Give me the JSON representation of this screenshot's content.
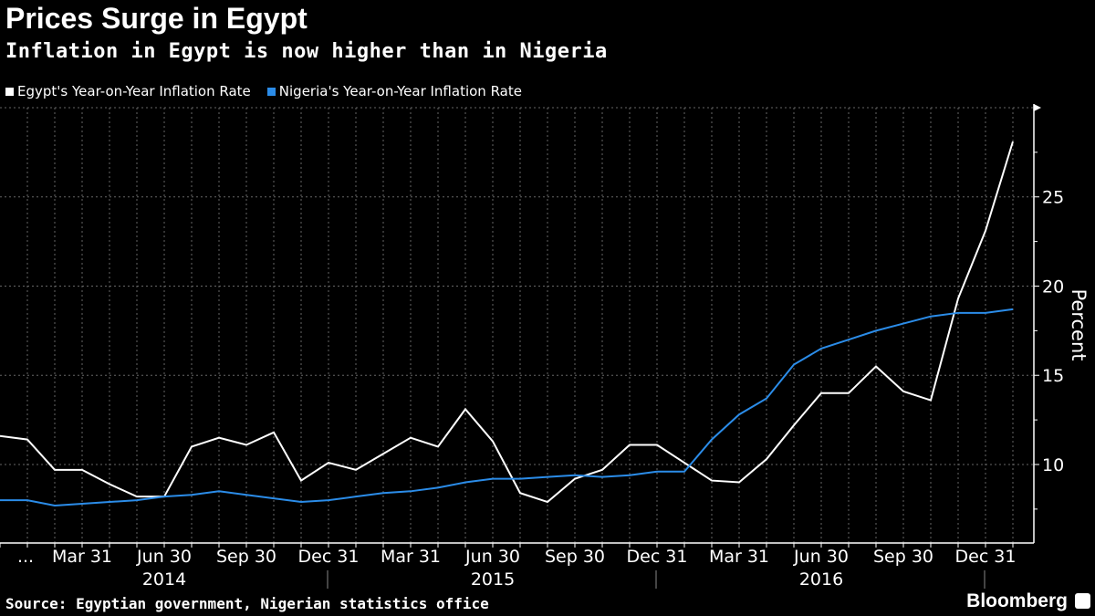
{
  "chart_data": {
    "type": "line",
    "title": "Prices Surge in Egypt",
    "subtitle": "Inflation in Egypt is now higher than in Nigeria",
    "ylabel": "Percent",
    "ylim": [
      5.6,
      30
    ],
    "yticks": [
      10,
      15,
      20,
      25
    ],
    "x": [
      "2013-12",
      "2014-01",
      "2014-02",
      "2014-03",
      "2014-04",
      "2014-05",
      "2014-06",
      "2014-07",
      "2014-08",
      "2014-09",
      "2014-10",
      "2014-11",
      "2014-12",
      "2015-01",
      "2015-02",
      "2015-03",
      "2015-04",
      "2015-05",
      "2015-06",
      "2015-07",
      "2015-08",
      "2015-09",
      "2015-10",
      "2015-11",
      "2015-12",
      "2016-01",
      "2016-02",
      "2016-03",
      "2016-04",
      "2016-05",
      "2016-06",
      "2016-07",
      "2016-08",
      "2016-09",
      "2016-10",
      "2016-11",
      "2016-12",
      "2017-01"
    ],
    "xtick_labels": [
      {
        "i": 1,
        "label": "..."
      },
      {
        "i": 3,
        "label": "Mar 31"
      },
      {
        "i": 6,
        "label": "Jun 30"
      },
      {
        "i": 9,
        "label": "Sep 30"
      },
      {
        "i": 12,
        "label": "Dec 31"
      },
      {
        "i": 15,
        "label": "Mar 31"
      },
      {
        "i": 18,
        "label": "Jun 30"
      },
      {
        "i": 21,
        "label": "Sep 30"
      },
      {
        "i": 24,
        "label": "Dec 31"
      },
      {
        "i": 27,
        "label": "Mar 31"
      },
      {
        "i": 30,
        "label": "Jun 30"
      },
      {
        "i": 33,
        "label": "Sep 30"
      },
      {
        "i": 36,
        "label": "Dec 31"
      }
    ],
    "year_labels": [
      {
        "i": 6,
        "label": "2014"
      },
      {
        "i": 18,
        "label": "2015"
      },
      {
        "i": 30,
        "label": "2016"
      }
    ],
    "grid": true,
    "legend_position": "top-left",
    "series": [
      {
        "name": "Egypt's Year-on-Year Inflation Rate",
        "color": "#ffffff",
        "values": [
          11.6,
          11.4,
          9.7,
          9.7,
          8.9,
          8.2,
          8.2,
          11.0,
          11.5,
          11.1,
          11.8,
          9.1,
          10.1,
          9.7,
          10.6,
          11.5,
          11.0,
          13.1,
          11.3,
          8.4,
          7.9,
          9.2,
          9.7,
          11.1,
          11.1,
          10.1,
          9.1,
          9.0,
          10.3,
          12.2,
          14.0,
          14.0,
          15.5,
          14.1,
          13.6,
          19.3,
          23.1,
          28.1
        ]
      },
      {
        "name": "Nigeria's Year-on-Year Inflation Rate",
        "color": "#2b8ce8",
        "values": [
          8.0,
          8.0,
          7.7,
          7.8,
          7.9,
          8.0,
          8.2,
          8.3,
          8.5,
          8.3,
          8.1,
          7.9,
          8.0,
          8.2,
          8.4,
          8.5,
          8.7,
          9.0,
          9.2,
          9.2,
          9.3,
          9.4,
          9.3,
          9.4,
          9.6,
          9.6,
          11.4,
          12.8,
          13.7,
          15.6,
          16.5,
          17.0,
          17.5,
          17.9,
          18.3,
          18.5,
          18.5,
          18.7
        ]
      }
    ],
    "source": "Source: Egyptian government, Nigerian statistics office",
    "brand": "Bloomberg"
  }
}
